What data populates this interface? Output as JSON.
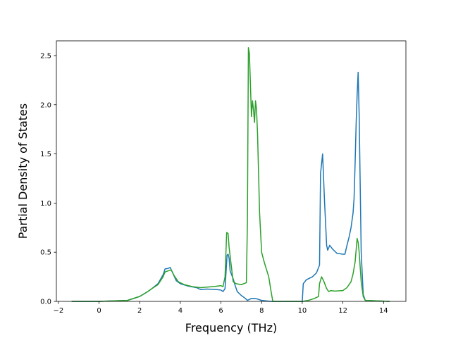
{
  "chart_data": {
    "type": "line",
    "title": "",
    "xlabel": "Frequency (THz)",
    "ylabel": "Partial Density of States",
    "xlim": [
      -2.1,
      15.1
    ],
    "ylim": [
      0,
      2.65
    ],
    "xticks": [
      -2,
      0,
      2,
      4,
      6,
      8,
      10,
      12,
      14
    ],
    "xtick_labels": [
      "−2",
      "0",
      "2",
      "4",
      "6",
      "8",
      "10",
      "12",
      "14"
    ],
    "yticks": [
      0.0,
      0.5,
      1.0,
      1.5,
      2.0,
      2.5
    ],
    "ytick_labels": [
      "0.0",
      "0.5",
      "1.0",
      "1.5",
      "2.0",
      "2.5"
    ],
    "grid": false,
    "legend": "none",
    "series": [
      {
        "color": "#1f77b4",
        "points": [
          [
            -1.35,
            0
          ],
          [
            0,
            0
          ],
          [
            1.4,
            0.01
          ],
          [
            2.0,
            0.05
          ],
          [
            2.4,
            0.1
          ],
          [
            2.6,
            0.13
          ],
          [
            2.9,
            0.18
          ],
          [
            3.15,
            0.27
          ],
          [
            3.25,
            0.33
          ],
          [
            3.4,
            0.335
          ],
          [
            3.5,
            0.345
          ],
          [
            3.6,
            0.3
          ],
          [
            3.8,
            0.21
          ],
          [
            4.0,
            0.18
          ],
          [
            4.4,
            0.155
          ],
          [
            4.8,
            0.14
          ],
          [
            5.0,
            0.12
          ],
          [
            5.3,
            0.125
          ],
          [
            5.8,
            0.12
          ],
          [
            6.0,
            0.115
          ],
          [
            6.1,
            0.1
          ],
          [
            6.2,
            0.13
          ],
          [
            6.3,
            0.47
          ],
          [
            6.35,
            0.48
          ],
          [
            6.4,
            0.44
          ],
          [
            6.45,
            0.31
          ],
          [
            6.6,
            0.23
          ],
          [
            6.7,
            0.16
          ],
          [
            6.8,
            0.1
          ],
          [
            7.0,
            0.06
          ],
          [
            7.2,
            0.03
          ],
          [
            7.3,
            0.01
          ],
          [
            7.5,
            0.03
          ],
          [
            7.7,
            0.03
          ],
          [
            8.0,
            0.01
          ],
          [
            8.2,
            0.005
          ],
          [
            8.5,
            0.0
          ],
          [
            10.0,
            0.0
          ],
          [
            10.05,
            0.18
          ],
          [
            10.2,
            0.22
          ],
          [
            10.5,
            0.25
          ],
          [
            10.7,
            0.29
          ],
          [
            10.85,
            0.37
          ],
          [
            10.9,
            1.3
          ],
          [
            11.0,
            1.5
          ],
          [
            11.1,
            1.0
          ],
          [
            11.2,
            0.57
          ],
          [
            11.25,
            0.52
          ],
          [
            11.35,
            0.57
          ],
          [
            11.5,
            0.53
          ],
          [
            11.7,
            0.49
          ],
          [
            12.0,
            0.48
          ],
          [
            12.1,
            0.48
          ],
          [
            12.2,
            0.57
          ],
          [
            12.3,
            0.65
          ],
          [
            12.4,
            0.75
          ],
          [
            12.5,
            0.9
          ],
          [
            12.55,
            1.05
          ],
          [
            12.6,
            1.4
          ],
          [
            12.65,
            1.8
          ],
          [
            12.7,
            2.1
          ],
          [
            12.75,
            2.33
          ],
          [
            12.8,
            1.9
          ],
          [
            12.9,
            0.5
          ],
          [
            13.0,
            0.07
          ],
          [
            13.1,
            0.01
          ],
          [
            14.3,
            0.0
          ]
        ]
      },
      {
        "color": "#2ca02c",
        "points": [
          [
            -1.35,
            0
          ],
          [
            0,
            0
          ],
          [
            1.4,
            0.01
          ],
          [
            2.0,
            0.05
          ],
          [
            2.4,
            0.1
          ],
          [
            2.6,
            0.13
          ],
          [
            2.9,
            0.17
          ],
          [
            3.15,
            0.25
          ],
          [
            3.25,
            0.3
          ],
          [
            3.4,
            0.31
          ],
          [
            3.55,
            0.32
          ],
          [
            3.7,
            0.26
          ],
          [
            3.9,
            0.2
          ],
          [
            4.2,
            0.17
          ],
          [
            4.6,
            0.15
          ],
          [
            5.0,
            0.14
          ],
          [
            5.3,
            0.145
          ],
          [
            5.6,
            0.15
          ],
          [
            5.8,
            0.155
          ],
          [
            6.0,
            0.16
          ],
          [
            6.1,
            0.15
          ],
          [
            6.2,
            0.25
          ],
          [
            6.28,
            0.7
          ],
          [
            6.35,
            0.69
          ],
          [
            6.4,
            0.55
          ],
          [
            6.6,
            0.2
          ],
          [
            6.75,
            0.18
          ],
          [
            7.0,
            0.17
          ],
          [
            7.25,
            0.19
          ],
          [
            7.3,
            0.8
          ],
          [
            7.35,
            2.58
          ],
          [
            7.4,
            2.52
          ],
          [
            7.45,
            2.2
          ],
          [
            7.5,
            1.88
          ],
          [
            7.55,
            2.04
          ],
          [
            7.6,
            1.95
          ],
          [
            7.65,
            1.82
          ],
          [
            7.7,
            2.04
          ],
          [
            7.75,
            1.95
          ],
          [
            7.8,
            1.7
          ],
          [
            7.9,
            0.9
          ],
          [
            8.0,
            0.5
          ],
          [
            8.1,
            0.42
          ],
          [
            8.2,
            0.35
          ],
          [
            8.35,
            0.25
          ],
          [
            8.45,
            0.12
          ],
          [
            8.55,
            0.0
          ],
          [
            10.0,
            0.0
          ],
          [
            10.3,
            0.01
          ],
          [
            10.6,
            0.03
          ],
          [
            10.8,
            0.05
          ],
          [
            10.85,
            0.18
          ],
          [
            10.95,
            0.25
          ],
          [
            11.05,
            0.21
          ],
          [
            11.2,
            0.13
          ],
          [
            11.3,
            0.1
          ],
          [
            11.4,
            0.11
          ],
          [
            11.6,
            0.105
          ],
          [
            12.0,
            0.11
          ],
          [
            12.2,
            0.14
          ],
          [
            12.4,
            0.2
          ],
          [
            12.5,
            0.28
          ],
          [
            12.6,
            0.4
          ],
          [
            12.7,
            0.64
          ],
          [
            12.75,
            0.6
          ],
          [
            12.8,
            0.5
          ],
          [
            12.9,
            0.2
          ],
          [
            13.0,
            0.05
          ],
          [
            13.1,
            0.01
          ],
          [
            14.3,
            0.0
          ]
        ]
      }
    ]
  }
}
